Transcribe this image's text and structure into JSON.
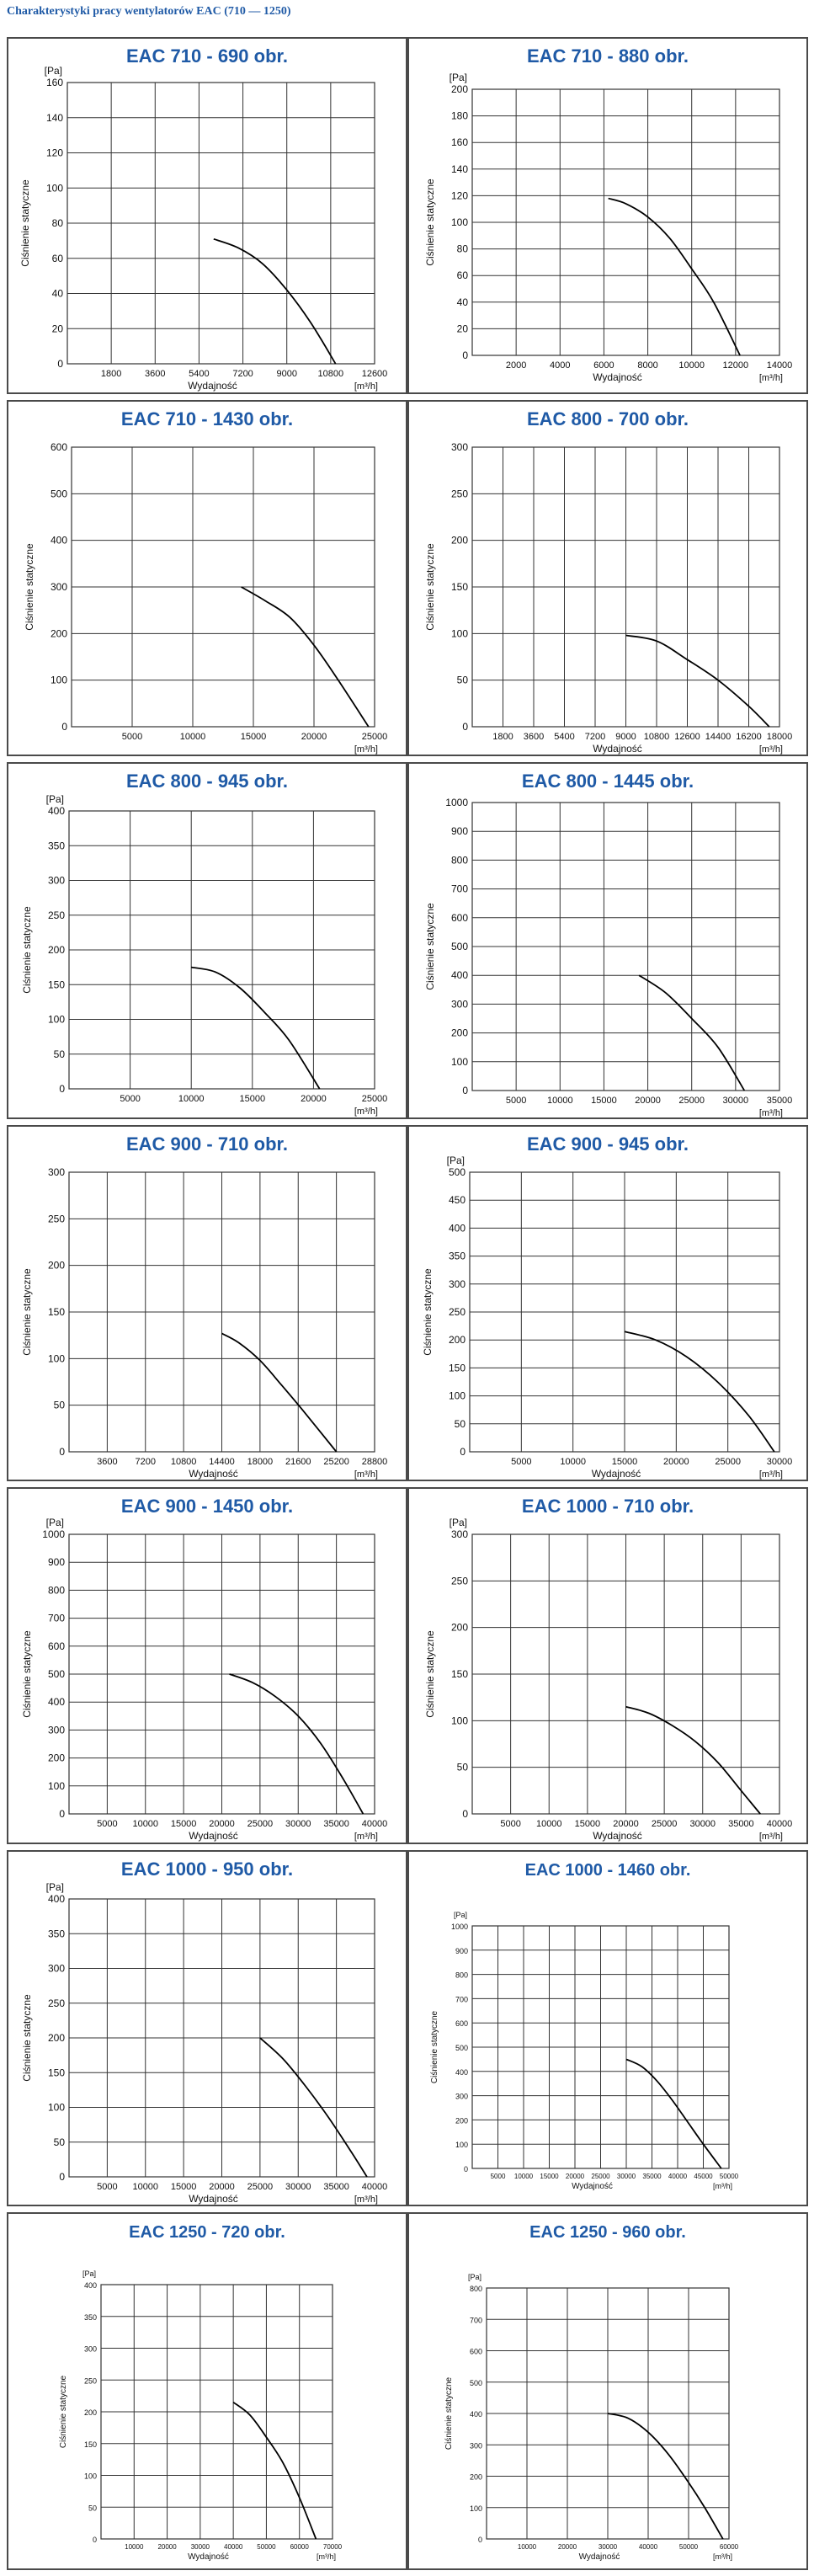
{
  "page_title": "Charakterystyki pracy wentylatorów EAC (710 — 1250)",
  "colors": {
    "title": "#1f5aa6",
    "grid": "#333333",
    "curve": "#000000",
    "panel_border": "#4a4a4a"
  },
  "chart_data": [
    {
      "type": "line",
      "title": "EAC 710 - 690 obr.",
      "ylabel": "Ciśnienie statyczne",
      "xlabel": "Wydajność",
      "yunit": "[Pa]",
      "xunit": "[m³/h]",
      "xlim": [
        0,
        12600
      ],
      "xticks": [
        1800,
        3600,
        5400,
        7200,
        9000,
        10800,
        12600
      ],
      "ylim": [
        0,
        160
      ],
      "yticks": [
        0,
        20,
        40,
        60,
        80,
        100,
        120,
        140,
        160
      ],
      "grid": true,
      "series": [
        {
          "x": [
            6000,
            7000,
            8000,
            9000,
            10000,
            11000
          ],
          "y": [
            71,
            66,
            57,
            42,
            23,
            0
          ]
        }
      ]
    },
    {
      "type": "line",
      "title": "EAC 710 - 880 obr.",
      "ylabel": "Ciśnienie statyczne",
      "xlabel": "Wydajność",
      "yunit": "[Pa]",
      "xunit": "[m³/h]",
      "xlim": [
        0,
        14000
      ],
      "xticks": [
        2000,
        4000,
        6000,
        8000,
        10000,
        12000,
        14000
      ],
      "ylim": [
        0,
        200
      ],
      "yticks": [
        0,
        20,
        40,
        60,
        80,
        100,
        120,
        140,
        160,
        180,
        200
      ],
      "grid": true,
      "series": [
        {
          "x": [
            6200,
            7000,
            8000,
            9000,
            10000,
            11000,
            12200
          ],
          "y": [
            118,
            114,
            104,
            88,
            65,
            40,
            0
          ]
        }
      ]
    },
    {
      "type": "line",
      "title": "EAC 710 - 1430 obr.",
      "ylabel": "Ciśnienie statyczne",
      "xlabel": "",
      "yunit": "",
      "xunit": "[m³/h]",
      "xlim": [
        0,
        25000
      ],
      "xticks": [
        5000,
        10000,
        15000,
        20000,
        25000
      ],
      "ylim": [
        0,
        600
      ],
      "yticks": [
        0,
        100,
        200,
        300,
        400,
        500,
        600
      ],
      "grid": true,
      "series": [
        {
          "x": [
            14000,
            16000,
            18000,
            20000,
            22000,
            24500
          ],
          "y": [
            300,
            270,
            235,
            175,
            100,
            0
          ]
        }
      ]
    },
    {
      "type": "line",
      "title": "EAC 800 - 700 obr.",
      "ylabel": "Ciśnienie statyczne",
      "xlabel": "Wydajność",
      "yunit": "",
      "xunit": "[m³/h]",
      "xlim": [
        0,
        18000
      ],
      "xticks": [
        1800,
        3600,
        5400,
        7200,
        9000,
        10800,
        12600,
        14400,
        16200,
        18000
      ],
      "ylim": [
        0,
        300
      ],
      "yticks": [
        0,
        50,
        100,
        150,
        200,
        250,
        300
      ],
      "grid": true,
      "series": [
        {
          "x": [
            9000,
            10800,
            12600,
            14400,
            16200,
            17400
          ],
          "y": [
            98,
            92,
            72,
            50,
            22,
            0
          ]
        }
      ]
    },
    {
      "type": "line",
      "title": "EAC 800 - 945 obr.",
      "ylabel": "Ciśnienie statyczne",
      "xlabel": "",
      "yunit": "[Pa]",
      "xunit": "[m³/h]",
      "xlim": [
        0,
        25000
      ],
      "xticks": [
        5000,
        10000,
        15000,
        20000,
        25000
      ],
      "ylim": [
        0,
        400
      ],
      "yticks": [
        0,
        50,
        100,
        150,
        200,
        250,
        300,
        350,
        400
      ],
      "grid": true,
      "series": [
        {
          "x": [
            10000,
            12000,
            14000,
            16000,
            18000,
            20500
          ],
          "y": [
            175,
            168,
            145,
            110,
            70,
            0
          ]
        }
      ]
    },
    {
      "type": "line",
      "title": "EAC 800 - 1445 obr.",
      "ylabel": "Ciśnienie statyczne",
      "xlabel": "",
      "yunit": "",
      "xunit": "[m³/h]",
      "xlim": [
        0,
        35000
      ],
      "xticks": [
        5000,
        10000,
        15000,
        20000,
        25000,
        30000,
        35000
      ],
      "ylim": [
        0,
        1000
      ],
      "yticks": [
        0,
        100,
        200,
        300,
        400,
        500,
        600,
        700,
        800,
        900,
        1000
      ],
      "grid": true,
      "series": [
        {
          "x": [
            19000,
            22000,
            25000,
            28000,
            31000
          ],
          "y": [
            400,
            340,
            250,
            150,
            0
          ]
        }
      ]
    },
    {
      "type": "line",
      "title": "EAC 900 - 710 obr.",
      "ylabel": "Ciśnienie statyczne",
      "xlabel": "Wydajność",
      "yunit": "",
      "xunit": "[m³/h]",
      "xlim": [
        0,
        28800
      ],
      "xticks": [
        3600,
        7200,
        10800,
        14400,
        18000,
        21600,
        25200,
        28800
      ],
      "ylim": [
        0,
        300
      ],
      "yticks": [
        0,
        50,
        100,
        150,
        200,
        250,
        300
      ],
      "grid": true,
      "series": [
        {
          "x": [
            14400,
            16000,
            18000,
            20000,
            22000,
            25200
          ],
          "y": [
            127,
            117,
            98,
            72,
            45,
            0
          ]
        }
      ]
    },
    {
      "type": "line",
      "title": "EAC 900 - 945 obr.",
      "ylabel": "Ciśnienie statyczne",
      "xlabel": "Wydajność",
      "yunit": "[Pa]",
      "xunit": "[m³/h]",
      "xlim": [
        0,
        30000
      ],
      "xticks": [
        5000,
        10000,
        15000,
        20000,
        25000,
        30000
      ],
      "ylim": [
        0,
        500
      ],
      "yticks": [
        0,
        50,
        100,
        150,
        200,
        250,
        300,
        350,
        400,
        450,
        500
      ],
      "grid": true,
      "series": [
        {
          "x": [
            15000,
            18000,
            21000,
            24000,
            27000,
            29500
          ],
          "y": [
            215,
            200,
            170,
            125,
            65,
            0
          ]
        }
      ]
    },
    {
      "type": "line",
      "title": "EAC 900 - 1450 obr.",
      "ylabel": "Ciśnienie statyczne",
      "xlabel": "Wydajność",
      "yunit": "[Pa]",
      "xunit": "[m³/h]",
      "xlim": [
        0,
        40000
      ],
      "xticks": [
        5000,
        10000,
        15000,
        20000,
        25000,
        30000,
        35000,
        40000
      ],
      "ylim": [
        0,
        1000
      ],
      "yticks": [
        0,
        100,
        200,
        300,
        400,
        500,
        600,
        700,
        800,
        900,
        1000
      ],
      "grid": true,
      "series": [
        {
          "x": [
            21000,
            24000,
            27000,
            30000,
            33000,
            36000,
            38500
          ],
          "y": [
            500,
            470,
            420,
            350,
            250,
            120,
            0
          ]
        }
      ]
    },
    {
      "type": "line",
      "title": "EAC 1000 - 710 obr.",
      "ylabel": "Ciśnienie statyczne",
      "xlabel": "Wydajność",
      "yunit": "[Pa]",
      "xunit": "[m³/h]",
      "xlim": [
        0,
        40000
      ],
      "xticks": [
        5000,
        10000,
        15000,
        20000,
        25000,
        30000,
        35000,
        40000
      ],
      "ylim": [
        0,
        300
      ],
      "yticks": [
        0,
        50,
        100,
        150,
        200,
        250,
        300
      ],
      "grid": true,
      "series": [
        {
          "x": [
            20000,
            23000,
            26000,
            29000,
            32000,
            35000,
            37500
          ],
          "y": [
            115,
            108,
            95,
            78,
            55,
            25,
            0
          ]
        }
      ]
    },
    {
      "type": "line",
      "title": "EAC 1000 - 950 obr.",
      "ylabel": "Ciśnienie statyczne",
      "xlabel": "Wydajność",
      "yunit": "[Pa]",
      "xunit": "[m³/h]",
      "xlim": [
        0,
        40000
      ],
      "xticks": [
        5000,
        10000,
        15000,
        20000,
        25000,
        30000,
        35000,
        40000
      ],
      "ylim": [
        0,
        400
      ],
      "yticks": [
        0,
        50,
        100,
        150,
        200,
        250,
        300,
        350,
        400
      ],
      "grid": true,
      "series": [
        {
          "x": [
            25000,
            28000,
            31000,
            34000,
            37000,
            39000
          ],
          "y": [
            200,
            170,
            130,
            85,
            35,
            0
          ]
        }
      ]
    },
    {
      "type": "line",
      "title": "EAC 1000 - 1460 obr.",
      "ylabel": "Ciśnienie statyczne",
      "xlabel": "Wydajność",
      "yunit": "[Pa]",
      "xunit": "[m³/h]",
      "xlim": [
        0,
        50000
      ],
      "xticks": [
        5000,
        10000,
        15000,
        20000,
        25000,
        30000,
        35000,
        40000,
        45000,
        50000
      ],
      "ylim": [
        0,
        1000
      ],
      "yticks": [
        0,
        100,
        200,
        300,
        400,
        500,
        600,
        700,
        800,
        900,
        1000
      ],
      "grid": true,
      "series": [
        {
          "x": [
            30000,
            33000,
            36000,
            39000,
            42000,
            45000,
            48500
          ],
          "y": [
            450,
            420,
            360,
            280,
            190,
            100,
            0
          ]
        }
      ]
    },
    {
      "type": "line",
      "title": "EAC 1250 - 720 obr.",
      "ylabel": "Ciśnienie statyczne",
      "xlabel": "Wydajność",
      "yunit": "[Pa]",
      "xunit": "[m³/h]",
      "xlim": [
        0,
        70000
      ],
      "xticks": [
        10000,
        20000,
        30000,
        40000,
        50000,
        60000,
        70000
      ],
      "ylim": [
        0,
        400
      ],
      "yticks": [
        0,
        50,
        100,
        150,
        200,
        250,
        300,
        350,
        400
      ],
      "grid": true,
      "series": [
        {
          "x": [
            40000,
            45000,
            50000,
            55000,
            60000,
            65000
          ],
          "y": [
            215,
            195,
            160,
            120,
            65,
            0
          ]
        }
      ]
    },
    {
      "type": "line",
      "title": "EAC 1250 - 960 obr.",
      "ylabel": "Ciśnienie statyczne",
      "xlabel": "Wydajność",
      "yunit": "[Pa]",
      "xunit": "[m³/h]",
      "xlim": [
        0,
        60000
      ],
      "xticks": [
        10000,
        20000,
        30000,
        40000,
        50000,
        60000
      ],
      "ylim": [
        0,
        800
      ],
      "yticks": [
        0,
        100,
        200,
        300,
        400,
        500,
        600,
        700,
        800
      ],
      "grid": true,
      "series": [
        {
          "x": [
            30000,
            35000,
            40000,
            45000,
            50000,
            54000,
            58500
          ],
          "y": [
            400,
            385,
            340,
            270,
            180,
            100,
            0
          ]
        }
      ]
    }
  ]
}
